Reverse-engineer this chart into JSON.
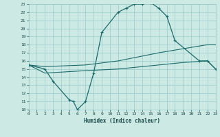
{
  "xlabel": "Humidex (Indice chaleur)",
  "xlim": [
    0,
    23
  ],
  "ylim": [
    10,
    23
  ],
  "xticks": [
    0,
    1,
    2,
    3,
    4,
    5,
    6,
    7,
    8,
    9,
    10,
    11,
    12,
    13,
    14,
    15,
    16,
    17,
    18,
    19,
    20,
    21,
    22,
    23
  ],
  "yticks": [
    10,
    11,
    12,
    13,
    14,
    15,
    16,
    17,
    18,
    19,
    20,
    21,
    22,
    23
  ],
  "bg_color": "#cce9e4",
  "grid_color": "#99cccc",
  "line_color": "#1a6b6b",
  "line1_x": [
    0,
    2,
    3,
    5,
    5.5,
    6,
    7,
    8,
    9,
    11,
    12,
    13,
    14,
    15,
    16,
    17,
    18,
    21,
    22,
    23
  ],
  "line1_y": [
    15.5,
    15.0,
    13.5,
    11.2,
    11.0,
    10.0,
    11.0,
    14.5,
    19.5,
    22.0,
    22.5,
    23.0,
    23.0,
    23.2,
    22.5,
    21.5,
    18.5,
    16.0,
    16.0,
    15.0
  ],
  "line2_x": [
    0,
    2,
    7,
    11,
    16,
    19,
    22,
    23
  ],
  "line2_y": [
    15.5,
    15.3,
    15.5,
    16.0,
    17.0,
    17.5,
    18.0,
    18.0
  ],
  "line3_x": [
    0,
    2,
    7,
    11,
    16,
    19,
    22,
    23
  ],
  "line3_y": [
    15.5,
    14.5,
    14.8,
    15.0,
    15.5,
    15.8,
    16.0,
    15.0
  ]
}
